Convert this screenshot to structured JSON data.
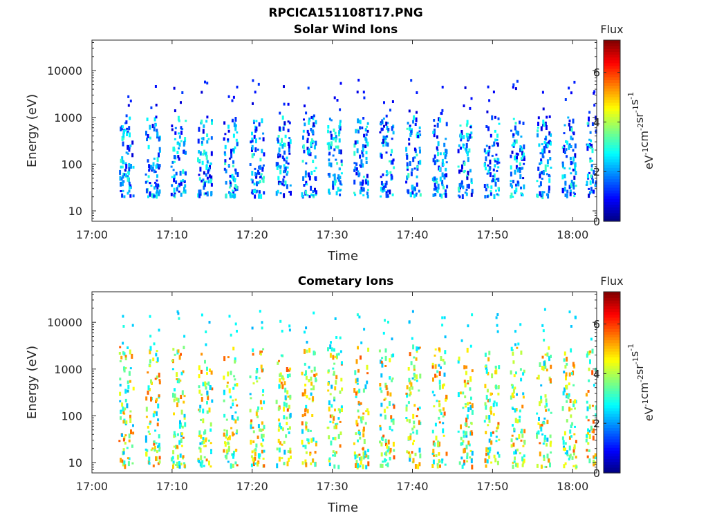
{
  "figure_title": "RPCICA151108T17.PNG",
  "colors": {
    "colormap_stops": [
      "#00007f",
      "#0000ff",
      "#007fff",
      "#00ffff",
      "#7fff7f",
      "#ffff00",
      "#ff7f00",
      "#ff0000",
      "#7f0000"
    ]
  },
  "chart_data": [
    {
      "type": "heatmap",
      "title": "Solar Wind Ions",
      "xlabel": "Time",
      "ylabel": "Energy (eV)",
      "xticks": [
        "17:00",
        "17:10",
        "17:20",
        "17:30",
        "17:40",
        "17:50",
        "18:00"
      ],
      "xlim_minutes": [
        0,
        63
      ],
      "yscale": "log",
      "yticks": [
        "10",
        "100",
        "1000",
        "10000"
      ],
      "ylim": [
        6,
        45000
      ],
      "colorbar": {
        "title": "Flux",
        "label": "eV-1cm-2sr-1s-1",
        "ticks": [
          "0",
          "2",
          "4",
          "6"
        ],
        "range": [
          0,
          7.3
        ]
      },
      "sweep_minutes": [
        4.2,
        7.5,
        10.7,
        14.0,
        17.2,
        20.5,
        23.8,
        27.0,
        30.2,
        33.5,
        36.7,
        40.0,
        43.3,
        46.5,
        49.8,
        53.0,
        56.3,
        59.5,
        62.5
      ],
      "energy_range_eV": [
        20,
        1000
      ],
      "flux_range": [
        0.6,
        3.2
      ]
    },
    {
      "type": "heatmap",
      "title": "Cometary Ions",
      "xlabel": "Time",
      "ylabel": "Energy (eV)",
      "xticks": [
        "17:00",
        "17:10",
        "17:20",
        "17:30",
        "17:40",
        "17:50",
        "18:00"
      ],
      "xlim_minutes": [
        0,
        63
      ],
      "yscale": "log",
      "yticks": [
        "10",
        "100",
        "1000",
        "10000"
      ],
      "ylim": [
        6,
        45000
      ],
      "colorbar": {
        "title": "Flux",
        "label": "eV-1cm-2sr-1s-1",
        "ticks": [
          "0",
          "2",
          "4",
          "6"
        ],
        "range": [
          0,
          7.3
        ]
      },
      "sweep_minutes": [
        4.2,
        7.5,
        10.7,
        14.0,
        17.2,
        20.5,
        23.8,
        27.0,
        30.2,
        33.5,
        36.7,
        40.0,
        43.3,
        46.5,
        49.8,
        53.0,
        56.3,
        59.5,
        62.5
      ],
      "energy_range_eV": [
        8,
        3000
      ],
      "flux_range": [
        2.2,
        5.8
      ]
    }
  ]
}
